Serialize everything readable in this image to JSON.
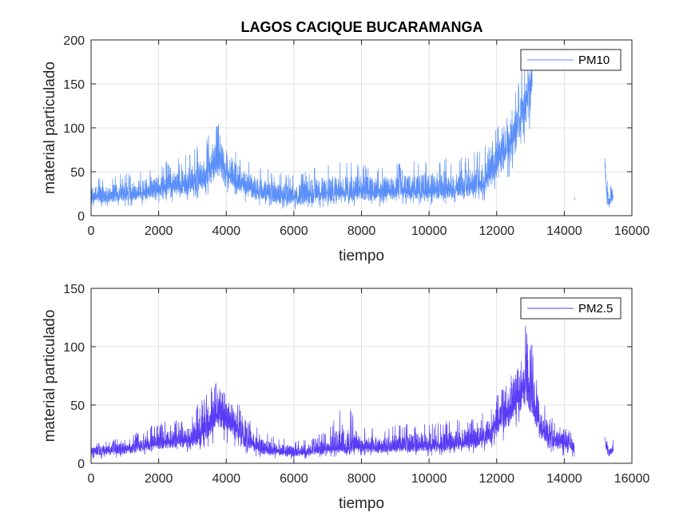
{
  "figure_title": "LAGOS CACIQUE BUCARAMANGA",
  "chart_data": [
    {
      "type": "line",
      "title": "LAGOS CACIQUE BUCARAMANGA",
      "xlabel": "tiempo",
      "ylabel": "material particulado",
      "xlim": [
        0,
        16000
      ],
      "ylim": [
        0,
        200
      ],
      "xticks": [
        0,
        2000,
        4000,
        6000,
        8000,
        10000,
        12000,
        14000,
        16000
      ],
      "yticks": [
        0,
        50,
        100,
        150,
        200
      ],
      "grid": true,
      "legend_position": "top-right",
      "series": [
        {
          "name": "PM10",
          "color": "#5b8ff9",
          "segments": [
            {
              "x": [
                0,
                500,
                1000,
                1500,
                2000,
                2500,
                3000,
                3300,
                3600,
                3800,
                4000,
                4300,
                4600,
                5000,
                5500,
                6000,
                6500,
                7000,
                7500,
                8000,
                8500,
                9000,
                9500,
                10000,
                10500,
                11000,
                11500,
                11800,
                12000,
                12300,
                12500,
                12700,
                12900,
                13050
              ],
              "y": [
                20,
                22,
                24,
                26,
                30,
                33,
                36,
                40,
                55,
                60,
                50,
                40,
                32,
                26,
                22,
                20,
                24,
                25,
                26,
                27,
                26,
                27,
                28,
                28,
                29,
                31,
                35,
                45,
                60,
                75,
                90,
                110,
                135,
                160
              ],
              "min": [
                8,
                10,
                10,
                12,
                14,
                16,
                18,
                20,
                25,
                30,
                25,
                20,
                15,
                12,
                8,
                6,
                8,
                10,
                10,
                10,
                10,
                12,
                12,
                12,
                12,
                14,
                15,
                20,
                30,
                40,
                45,
                55,
                70,
                90
              ],
              "max": [
                45,
                45,
                48,
                55,
                60,
                65,
                75,
                85,
                105,
                105,
                95,
                80,
                65,
                55,
                50,
                48,
                55,
                60,
                62,
                60,
                58,
                60,
                62,
                65,
                68,
                70,
                75,
                85,
                105,
                120,
                140,
                165,
                185,
                190
              ]
            },
            {
              "x": [
                14300,
                14320
              ],
              "y": [
                18,
                20
              ],
              "min": [
                14,
                15
              ],
              "max": [
                22,
                24
              ]
            },
            {
              "x": [
                15200,
                15260,
                15320,
                15380,
                15450
              ],
              "y": [
                58,
                25,
                15,
                20,
                22
              ],
              "min": [
                45,
                10,
                8,
                10,
                10
              ],
              "max": [
                75,
                45,
                30,
                35,
                38
              ]
            }
          ]
        }
      ]
    },
    {
      "type": "line",
      "xlabel": "tiempo",
      "ylabel": "material particulado",
      "xlim": [
        0,
        16000
      ],
      "ylim": [
        0,
        150
      ],
      "xticks": [
        0,
        2000,
        4000,
        6000,
        8000,
        10000,
        12000,
        14000,
        16000
      ],
      "yticks": [
        0,
        50,
        100,
        150
      ],
      "grid": true,
      "legend_position": "top-right",
      "series": [
        {
          "name": "PM2.5",
          "color": "#5a3cf5",
          "segments": [
            {
              "x": [
                0,
                500,
                1000,
                1500,
                2000,
                2500,
                3000,
                3300,
                3600,
                3800,
                4000,
                4300,
                4600,
                5000,
                5500,
                6000,
                6500,
                7000,
                7500,
                8000,
                8500,
                9000,
                9500,
                10000,
                10500,
                11000,
                11500,
                11800,
                12000,
                12300,
                12500,
                12700,
                12900,
                13100,
                13300,
                13600,
                14000,
                14300
              ],
              "y": [
                10,
                11,
                12,
                14,
                17,
                18,
                20,
                25,
                35,
                45,
                40,
                30,
                20,
                12,
                10,
                9,
                10,
                12,
                13,
                14,
                13,
                14,
                14,
                15,
                16,
                17,
                19,
                25,
                35,
                40,
                50,
                60,
                70,
                50,
                30,
                20,
                18,
                15
              ],
              "min": [
                4,
                4,
                5,
                6,
                8,
                9,
                10,
                12,
                15,
                20,
                18,
                12,
                8,
                5,
                4,
                3,
                4,
                5,
                5,
                6,
                5,
                6,
                6,
                6,
                7,
                8,
                9,
                12,
                18,
                20,
                25,
                30,
                35,
                25,
                15,
                8,
                6,
                5
              ],
              "max": [
                18,
                20,
                22,
                28,
                35,
                38,
                45,
                55,
                70,
                80,
                75,
                55,
                40,
                28,
                22,
                20,
                22,
                28,
                55,
                32,
                30,
                32,
                35,
                35,
                36,
                38,
                40,
                50,
                58,
                70,
                95,
                115,
                120,
                95,
                60,
                40,
                32,
                25
              ]
            },
            {
              "x": [
                15200,
                15260,
                15320,
                15380,
                15450
              ],
              "y": [
                22,
                12,
                8,
                10,
                12
              ],
              "min": [
                15,
                5,
                4,
                5,
                5
              ],
              "max": [
                28,
                20,
                14,
                18,
                20
              ]
            }
          ]
        }
      ]
    }
  ]
}
